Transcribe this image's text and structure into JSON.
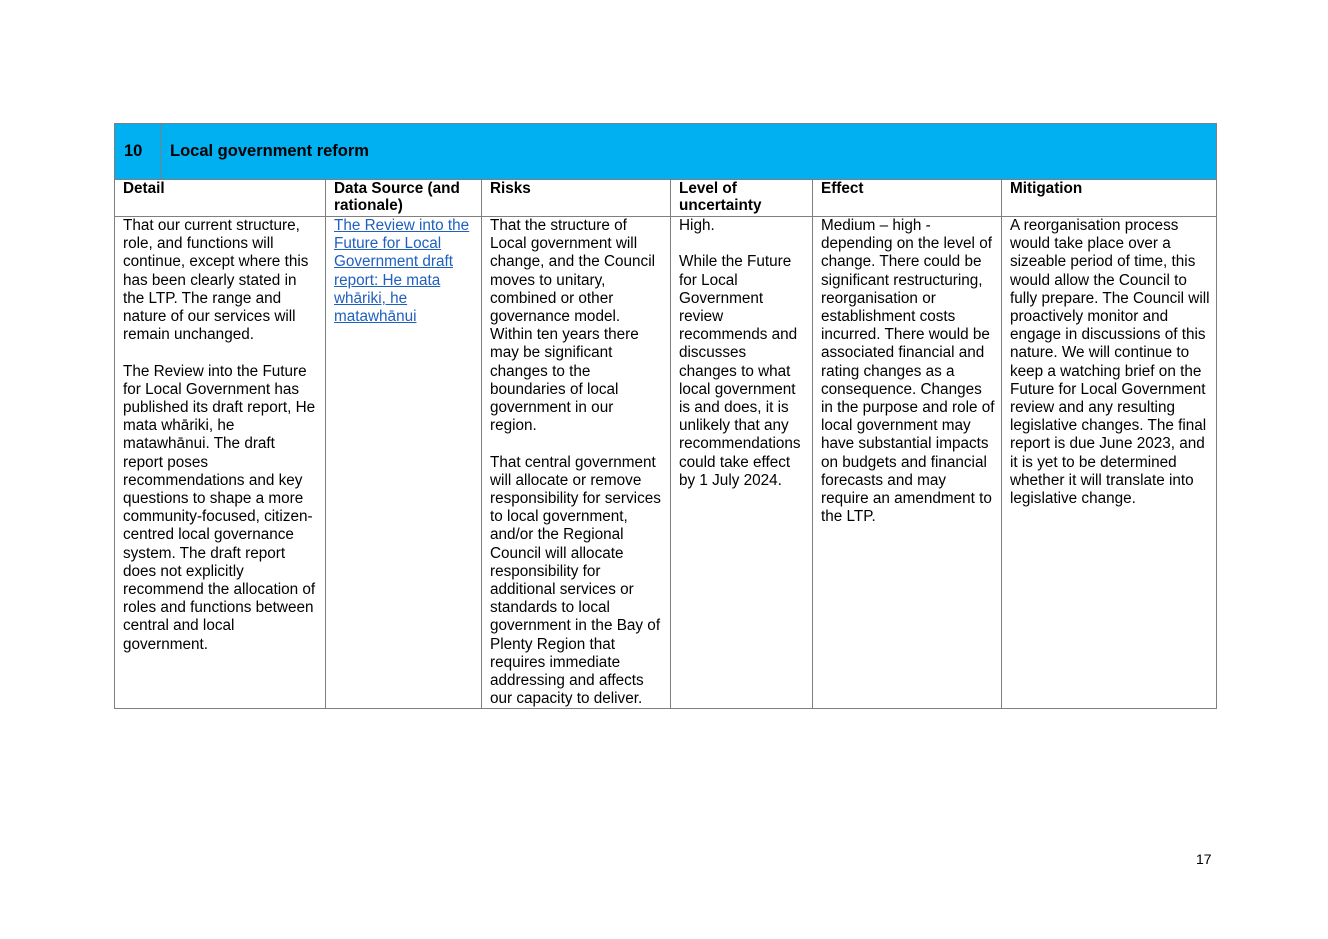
{
  "section": {
    "number": "10",
    "title": "Local government reform",
    "band_color": "#00b0f0"
  },
  "columns": [
    "Detail",
    "Data Source (and rationale)",
    "Risks",
    "Level of uncertainty",
    "Effect",
    "Mitigation"
  ],
  "row": {
    "detail": [
      "That our current structure, role, and functions will continue, except where this has been clearly stated in the LTP. The range and nature of our services will remain unchanged.",
      "The Review into the Future for Local Government has published its draft report, He mata whāriki, he matawhānui. The draft report poses recommendations and key questions to shape a more community-focused, citizen-centred local governance system. The draft report does not explicitly recommend the allocation of roles and functions between central and local government."
    ],
    "data_source_link": "The Review into the Future for Local Government draft report: He mata whāriki, he matawhānui",
    "risks": [
      "That the structure of Local government will change, and the Council moves to unitary, combined or other governance model. Within ten years there may be significant changes to the boundaries of local government in our region.",
      "That central government will allocate or remove responsibility for services to local government, and/or the Regional Council will allocate responsibility for additional services or standards to local government in the Bay of Plenty Region that requires immediate addressing and affects our capacity to deliver."
    ],
    "uncertainty": [
      "High.",
      "While the Future for Local Government review recommends and discusses changes to what local government is and does, it is unlikely that any recommendations could take effect by 1 July 2024."
    ],
    "effect": [
      "Medium – high - depending on the level of change. There could be significant restructuring, reorganisation or establishment costs incurred. There would be associated financial and rating changes as a consequence. Changes in the purpose and role of local government may have substantial impacts on budgets and financial forecasts and may require an amendment to the LTP."
    ],
    "mitigation": [
      "A reorganisation process would take place over a sizeable period of time, this would allow the Council to fully prepare. The Council will proactively monitor and engage in discussions of this nature.  We will continue to keep a watching brief on the Future for Local Government review and any resulting legislative changes. The final report is due June 2023, and it is yet to be determined whether it will translate into legislative change."
    ]
  },
  "page_number": "17"
}
